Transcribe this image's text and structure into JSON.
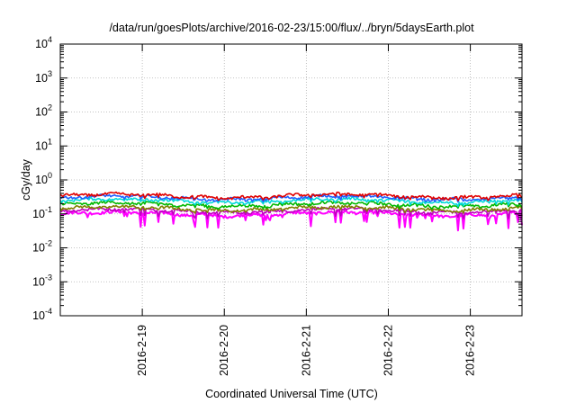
{
  "chart_data": {
    "type": "line",
    "title": "/data/run/goesPlots/archive/2016-02-23/15:00/flux/../bryn/5daysEarth.plot",
    "xlabel": "Coordinated Universal Time (UTC)",
    "ylabel": "cGy/day",
    "yscale": "log",
    "ylim_exp": [
      -4,
      4
    ],
    "y_tick_base": "10",
    "y_tick_exponents": [
      "-4",
      "-3",
      "-2",
      "-1",
      "0",
      "1",
      "2",
      "3",
      "4"
    ],
    "x_tick_labels": [
      "2016-2-19",
      "2016-2-20",
      "2016-2-21",
      "2016-2-22",
      "2016-2-23"
    ],
    "xlim_days": [
      0,
      5.63
    ],
    "x_tick_positions_days": [
      1,
      2,
      3,
      4,
      5
    ],
    "grid": true,
    "series": [
      {
        "color": "#e00000",
        "base": 0.34
      },
      {
        "color": "#00b800",
        "base": 0.19
      },
      {
        "color": "#2060ff",
        "base": 0.3
      },
      {
        "color": "#c000c0",
        "base": 0.125
      },
      {
        "color": "#00d8d8",
        "base": 0.245
      },
      {
        "color": "#808000",
        "base": 0.145
      },
      {
        "color": "#ff00ff",
        "base": 0.1
      }
    ]
  }
}
